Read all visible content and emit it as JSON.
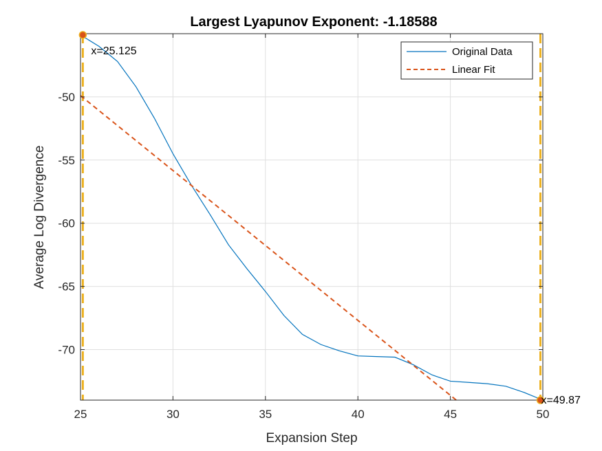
{
  "chart_data": {
    "type": "line",
    "title": "Largest Lyapunov Exponent: -1.18588",
    "xlabel": "Expansion Step",
    "ylabel": "Average Log Divergence",
    "xlim": [
      25,
      50
    ],
    "ylim": [
      -74,
      -45
    ],
    "xticks": [
      25,
      30,
      35,
      40,
      45,
      50
    ],
    "yticks": [
      -50,
      -55,
      -60,
      -65,
      -70
    ],
    "grid": true,
    "legend_position": "top-right",
    "series": [
      {
        "name": "Original Data",
        "style": "solid",
        "color": "#0072BD",
        "x": [
          25,
          26,
          27,
          28,
          29,
          30,
          31,
          32,
          33,
          34,
          35,
          36,
          37,
          38,
          39,
          40,
          41,
          42,
          43,
          44,
          45,
          46,
          47,
          48,
          49,
          50
        ],
        "y": [
          -45.1,
          -46.0,
          -47.2,
          -49.2,
          -51.7,
          -54.5,
          -57.0,
          -59.3,
          -61.7,
          -63.6,
          -65.4,
          -67.3,
          -68.8,
          -69.6,
          -70.1,
          -70.5,
          -70.55,
          -70.6,
          -71.2,
          -72.0,
          -72.5,
          -72.6,
          -72.7,
          -72.9,
          -73.4,
          -74.0
        ]
      },
      {
        "name": "Linear Fit",
        "style": "dashed",
        "color": "#D95319",
        "x": [
          25,
          50
        ],
        "y": [
          -49.9,
          -79.55
        ]
      }
    ],
    "vertical_lines": [
      {
        "x": 25.125,
        "color": "#EDB120",
        "style": "dashed"
      },
      {
        "x": 49.87,
        "color": "#EDB120",
        "style": "dashed"
      }
    ],
    "markers": [
      {
        "x": 25.125,
        "y": -45.1,
        "color": "#D95319"
      },
      {
        "x": 49.87,
        "y": -74.0,
        "color": "#D95319"
      }
    ],
    "annotations": [
      {
        "text": "x=25.125",
        "anchor_x": 25.125,
        "anchor_y": -45.1
      },
      {
        "text": "x=49.87",
        "anchor_x": 49.87,
        "anchor_y": -74.0
      }
    ]
  }
}
